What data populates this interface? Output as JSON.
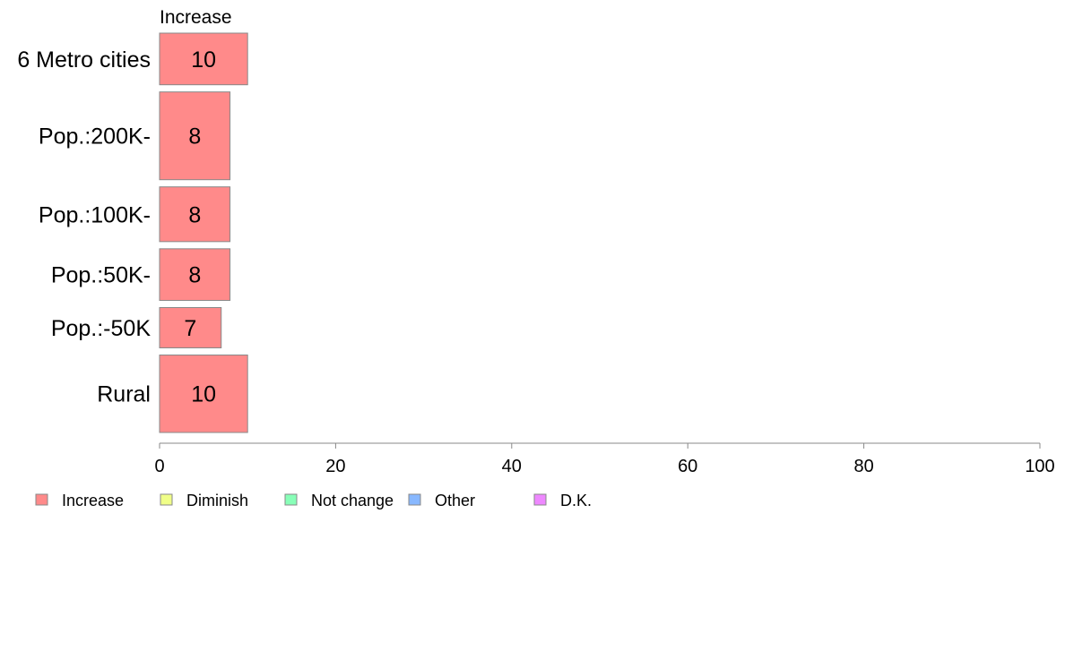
{
  "chart_data": {
    "type": "bar",
    "orientation": "horizontal",
    "stacked": true,
    "categories": [
      "6 Metro cities",
      "Pop.:200K-",
      "Pop.:100K-",
      "Pop.:50K-",
      "Pop.:-50K",
      "Rural"
    ],
    "category_weights": [
      1.0,
      1.7,
      1.06,
      1.0,
      0.78,
      1.5
    ],
    "series": [
      {
        "name": "Increase",
        "color": "#ff8a8a",
        "values": [
          10,
          8,
          8,
          8,
          7,
          10
        ],
        "display_values": [
          "10",
          "8",
          "8",
          "8",
          "7",
          "10"
        ]
      }
    ],
    "series_header": "Increase",
    "xlim": [
      0,
      100
    ],
    "xticks": [
      0,
      20,
      40,
      60,
      80,
      100
    ],
    "grid": false,
    "legend": {
      "placement": "bottom-left",
      "items": [
        {
          "label": "Increase",
          "color": "#ff8a8a"
        },
        {
          "label": "Diminish",
          "color": "#f0ff88"
        },
        {
          "label": "Not change",
          "color": "#88ffb8"
        },
        {
          "label": "Other",
          "color": "#88b8ff"
        },
        {
          "label": "D.K.",
          "color": "#ee88ff"
        }
      ]
    }
  }
}
